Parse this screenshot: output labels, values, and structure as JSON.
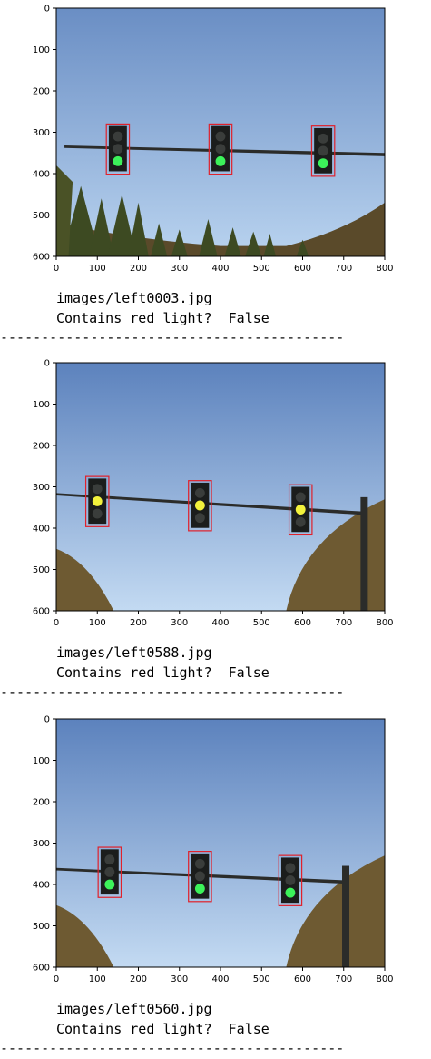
{
  "panels": [
    {
      "filename": "images/left0003.jpg",
      "result_text": "Contains red light?  False",
      "axes": {
        "xticks": [
          "0",
          "100",
          "200",
          "300",
          "400",
          "500",
          "600",
          "700",
          "800"
        ],
        "yticks": [
          "0",
          "100",
          "200",
          "300",
          "400",
          "500",
          "600"
        ],
        "xlim": [
          0,
          800
        ],
        "ylim": [
          0,
          600
        ]
      },
      "scene": {
        "pole": {
          "x1": 20,
          "y1": 332,
          "x2": 800,
          "y2": 350,
          "vertical_x": null
        },
        "lights": [
          {
            "x": 150,
            "y": 340,
            "color": "#3cf25a",
            "lit": 2
          },
          {
            "x": 400,
            "y": 340,
            "color": "#3cf25a",
            "lit": 2
          },
          {
            "x": 650,
            "y": 345,
            "color": "#3cf25a",
            "lit": 2
          }
        ],
        "hills": "trees"
      },
      "colors": {
        "sky_top": "#6a8ec4",
        "sky_bottom": "#b9d3ef"
      }
    },
    {
      "filename": "images/left0588.jpg",
      "result_text": "Contains red light?  False",
      "axes": {
        "xticks": [
          "0",
          "100",
          "200",
          "300",
          "400",
          "500",
          "600",
          "700",
          "800"
        ],
        "yticks": [
          "0",
          "100",
          "200",
          "300",
          "400",
          "500",
          "600"
        ],
        "xlim": [
          0,
          800
        ],
        "ylim": [
          0,
          600
        ]
      },
      "scene": {
        "pole": {
          "x1": 0,
          "y1": 315,
          "x2": 750,
          "y2": 360,
          "vertical_x": 750
        },
        "lights": [
          {
            "x": 100,
            "y": 335,
            "color": "#f2f23c",
            "lit": 1
          },
          {
            "x": 350,
            "y": 345,
            "color": "#f2f23c",
            "lit": 1
          },
          {
            "x": 595,
            "y": 355,
            "color": "#f2f23c",
            "lit": 1
          }
        ],
        "hills": "rock"
      },
      "colors": {
        "sky_top": "#5c82bd",
        "sky_bottom": "#c3daf2"
      }
    },
    {
      "filename": "images/left0560.jpg",
      "result_text": "Contains red light?  False",
      "axes": {
        "xticks": [
          "0",
          "100",
          "200",
          "300",
          "400",
          "500",
          "600",
          "700",
          "800"
        ],
        "yticks": [
          "0",
          "100",
          "200",
          "300",
          "400",
          "500",
          "600"
        ],
        "xlim": [
          0,
          800
        ],
        "ylim": [
          0,
          600
        ]
      },
      "scene": {
        "pole": {
          "x1": 0,
          "y1": 360,
          "x2": 705,
          "y2": 390,
          "vertical_x": 705
        },
        "lights": [
          {
            "x": 130,
            "y": 370,
            "color": "#3cf25a",
            "lit": 2
          },
          {
            "x": 350,
            "y": 380,
            "color": "#3cf25a",
            "lit": 2
          },
          {
            "x": 570,
            "y": 390,
            "color": "#3cf25a",
            "lit": 2
          }
        ],
        "hills": "rock"
      },
      "colors": {
        "sky_top": "#5c82bd",
        "sky_bottom": "#c3daf2"
      }
    }
  ],
  "separator": "------------------------------------------",
  "colors": {
    "bbox": "#e0212b",
    "housing": "#1b1d1c",
    "lamp_off": "#3a3d3b",
    "pole": "#2b2c2a"
  }
}
